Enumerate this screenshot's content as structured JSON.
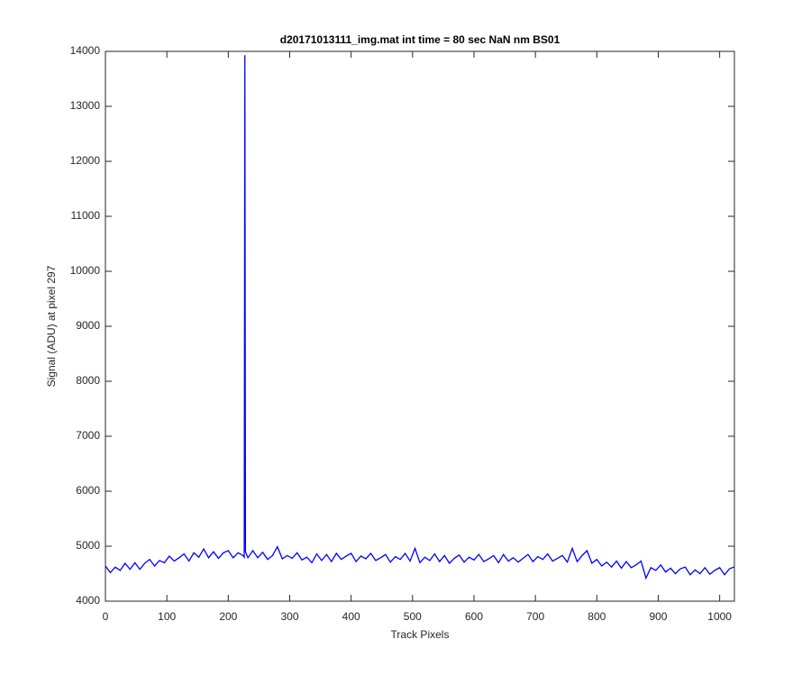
{
  "chart_data": {
    "type": "line",
    "title": "d20171013111_img.mat int time = 80 sec  NaN nm BS01",
    "xlabel": "Track Pixels",
    "ylabel": "Signal (ADU) at pixel 297",
    "xlim": [
      0,
      1024
    ],
    "ylim": [
      4000,
      14000
    ],
    "xticks": [
      0,
      100,
      200,
      300,
      400,
      500,
      600,
      700,
      800,
      900,
      1000
    ],
    "yticks": [
      4000,
      5000,
      6000,
      7000,
      8000,
      9000,
      10000,
      11000,
      12000,
      13000,
      14000
    ],
    "color": "#0000ff",
    "x": [
      0,
      8,
      16,
      24,
      32,
      40,
      48,
      56,
      64,
      72,
      80,
      88,
      96,
      104,
      112,
      120,
      128,
      136,
      144,
      152,
      160,
      168,
      176,
      184,
      192,
      200,
      208,
      216,
      224,
      226,
      227,
      228,
      232,
      240,
      248,
      256,
      264,
      272,
      280,
      288,
      296,
      304,
      312,
      320,
      328,
      336,
      344,
      352,
      360,
      368,
      376,
      384,
      392,
      400,
      408,
      416,
      424,
      432,
      440,
      448,
      456,
      464,
      472,
      480,
      488,
      496,
      504,
      512,
      520,
      528,
      536,
      544,
      552,
      560,
      568,
      576,
      584,
      592,
      600,
      608,
      616,
      624,
      632,
      640,
      648,
      656,
      664,
      672,
      680,
      688,
      696,
      704,
      712,
      720,
      728,
      736,
      744,
      752,
      760,
      768,
      776,
      784,
      792,
      800,
      808,
      816,
      824,
      832,
      840,
      848,
      856,
      864,
      872,
      880,
      888,
      896,
      904,
      912,
      920,
      928,
      936,
      944,
      952,
      960,
      968,
      976,
      984,
      992,
      1000,
      1008,
      1016,
      1023
    ],
    "values": [
      4640,
      4520,
      4620,
      4560,
      4690,
      4580,
      4700,
      4580,
      4690,
      4760,
      4640,
      4740,
      4700,
      4820,
      4730,
      4790,
      4860,
      4730,
      4880,
      4800,
      4950,
      4790,
      4900,
      4780,
      4880,
      4920,
      4790,
      4880,
      4830,
      4800,
      13930,
      4900,
      4790,
      4920,
      4790,
      4890,
      4760,
      4830,
      4990,
      4770,
      4830,
      4780,
      4880,
      4750,
      4800,
      4700,
      4860,
      4740,
      4850,
      4720,
      4870,
      4760,
      4820,
      4870,
      4720,
      4820,
      4770,
      4870,
      4740,
      4790,
      4850,
      4710,
      4810,
      4760,
      4870,
      4730,
      4960,
      4700,
      4800,
      4740,
      4860,
      4720,
      4830,
      4690,
      4780,
      4840,
      4710,
      4800,
      4750,
      4850,
      4720,
      4770,
      4830,
      4700,
      4850,
      4730,
      4790,
      4710,
      4780,
      4850,
      4720,
      4810,
      4760,
      4860,
      4730,
      4780,
      4830,
      4710,
      4960,
      4720,
      4830,
      4920,
      4690,
      4760,
      4640,
      4710,
      4620,
      4730,
      4600,
      4720,
      4610,
      4660,
      4730,
      4420,
      4610,
      4560,
      4660,
      4530,
      4600,
      4500,
      4590,
      4620,
      4480,
      4570,
      4500,
      4610,
      4490,
      4560,
      4610,
      4480,
      4590,
      4620
    ]
  }
}
